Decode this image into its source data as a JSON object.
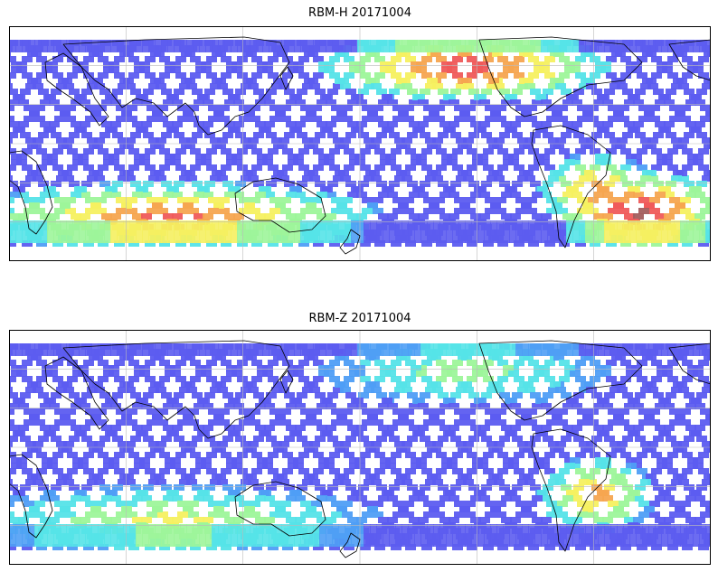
{
  "panels": [
    {
      "title": "RBM-H 20171004",
      "field": {
        "base": "#6f73f2",
        "hot_zones": [
          {
            "region": "north-pacific",
            "level": 0.95
          },
          {
            "region": "southern-ocean-west",
            "level": 0.85
          },
          {
            "region": "southern-ocean-east",
            "level": 1.0
          },
          {
            "region": "south-atlantic",
            "level": 0.8
          }
        ]
      }
    },
    {
      "title": "RBM-Z 20171004",
      "field": {
        "base": "#6f73f2",
        "hot_zones": [
          {
            "region": "south-atlantic",
            "level": 0.75
          },
          {
            "region": "southern-ocean-west",
            "level": 0.55
          },
          {
            "region": "north-pacific",
            "level": 0.45
          }
        ]
      }
    }
  ],
  "colormap": [
    "#5c5cf0",
    "#4f9ef5",
    "#55e3e8",
    "#9df59a",
    "#f5f060",
    "#f5a550",
    "#ef5a5a",
    "#a35d5d"
  ]
}
